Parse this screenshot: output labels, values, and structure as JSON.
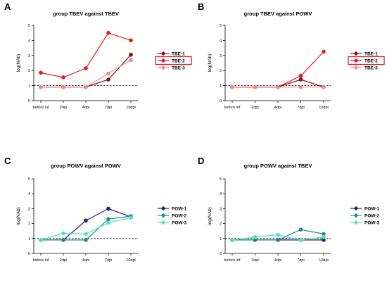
{
  "chart_data": [
    {
      "panel": "A",
      "type": "line",
      "title": "group TBEV against TBEV",
      "ylabel": "log(NAb)",
      "xlabel": "",
      "categories": [
        "before inf",
        "2dpi",
        "4dpi",
        "7dpi",
        "10dpi"
      ],
      "ylim": [
        0,
        5
      ],
      "yticks": [
        0,
        1,
        2,
        3,
        4,
        5
      ],
      "threshold": 1,
      "grid": false,
      "legend_position": "right",
      "highlighted_series": "TBE-2",
      "series": [
        {
          "name": "TBE-1",
          "color": "#8b0a12",
          "values": [
            0.9,
            0.9,
            0.9,
            1.4,
            3.05
          ]
        },
        {
          "name": "TBE-2",
          "color": "#e8161d",
          "values": [
            1.85,
            1.55,
            2.15,
            4.5,
            4.0
          ]
        },
        {
          "name": "TBE-3",
          "color": "#f08a8a",
          "values": [
            0.9,
            0.9,
            0.9,
            1.8,
            2.7
          ]
        }
      ]
    },
    {
      "panel": "B",
      "type": "line",
      "title": "group TBEV against POWV",
      "ylabel": "log(NAb)",
      "xlabel": "",
      "categories": [
        "before inf",
        "2dpi",
        "4dpi",
        "7dpi",
        "10dpi"
      ],
      "ylim": [
        0,
        5
      ],
      "yticks": [
        0,
        1,
        2,
        3,
        4,
        5
      ],
      "threshold": 1,
      "grid": false,
      "legend_position": "right",
      "highlighted_series": "TBE-2",
      "series": [
        {
          "name": "TBE-1",
          "color": "#8b0a12",
          "values": [
            0.9,
            0.9,
            0.9,
            1.4,
            0.9
          ]
        },
        {
          "name": "TBE-2",
          "color": "#e8161d",
          "values": [
            0.9,
            0.9,
            0.9,
            1.65,
            3.25
          ]
        },
        {
          "name": "TBE-3",
          "color": "#f08a8a",
          "values": [
            0.9,
            0.9,
            0.9,
            0.9,
            0.9
          ]
        }
      ]
    },
    {
      "panel": "C",
      "type": "line",
      "title": "group POWV against POWV",
      "ylabel": "log(NAb)",
      "xlabel": "",
      "categories": [
        "before inf",
        "2dpi",
        "4dpi",
        "7dpi",
        "10dpi"
      ],
      "ylim": [
        0,
        5
      ],
      "yticks": [
        0,
        1,
        2,
        3,
        4,
        5
      ],
      "threshold": 1,
      "grid": false,
      "legend_position": "right",
      "series": [
        {
          "name": "POW-1",
          "color": "#1b237a",
          "values": [
            0.9,
            0.9,
            2.2,
            3.0,
            2.45
          ]
        },
        {
          "name": "POW-2",
          "color": "#1f8a8c",
          "values": [
            0.9,
            0.9,
            0.9,
            2.3,
            2.5
          ]
        },
        {
          "name": "POW-3",
          "color": "#4ee6b8",
          "values": [
            0.9,
            1.35,
            1.3,
            2.05,
            2.4
          ]
        }
      ]
    },
    {
      "panel": "D",
      "type": "line",
      "title": "group POWV against TBEV",
      "ylabel": "log(NAb)",
      "xlabel": "",
      "categories": [
        "before inf",
        "2dpi",
        "4dpi",
        "7dpi",
        "10dpi"
      ],
      "ylim": [
        0,
        5
      ],
      "yticks": [
        0,
        1,
        2,
        3,
        4,
        5
      ],
      "threshold": 1,
      "grid": false,
      "legend_position": "right",
      "series": [
        {
          "name": "POW-1",
          "color": "#1b237a",
          "values": [
            0.9,
            0.9,
            0.9,
            0.9,
            0.9
          ]
        },
        {
          "name": "POW-2",
          "color": "#1f8a8c",
          "values": [
            0.9,
            0.9,
            0.9,
            1.6,
            1.3
          ]
        },
        {
          "name": "POW-3",
          "color": "#4ee6b8",
          "values": [
            0.9,
            1.1,
            1.25,
            0.9,
            1.1
          ]
        }
      ]
    }
  ]
}
